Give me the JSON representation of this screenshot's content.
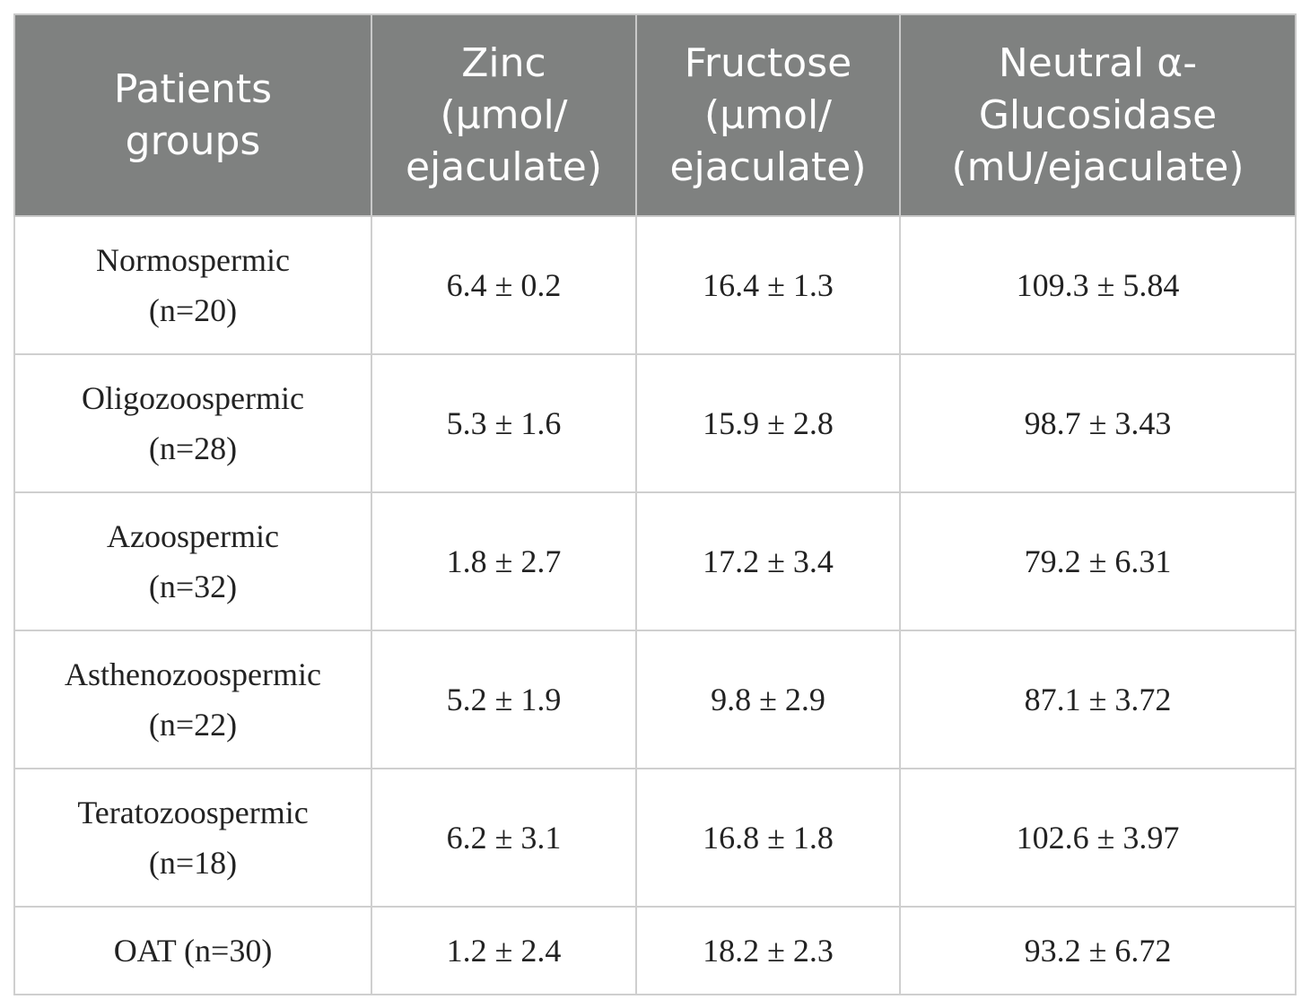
{
  "table": {
    "header": [
      [
        "Patients",
        "groups"
      ],
      [
        "Zinc",
        "(μmol/",
        "ejaculate)"
      ],
      [
        "Fructose",
        "(μmol/",
        "ejaculate)"
      ],
      [
        "Neutral α-",
        "Glucosidase",
        "(mU/ejaculate)"
      ]
    ],
    "rows": [
      [
        [
          "Normospermic",
          "(n=20)"
        ],
        "6.4 ± 0.2",
        "16.4 ± 1.3",
        "109.3 ± 5.84"
      ],
      [
        [
          "Oligozoospermic",
          "(n=28)"
        ],
        "5.3 ± 1.6",
        "15.9 ± 2.8",
        "98.7 ± 3.43"
      ],
      [
        [
          "Azoospermic",
          "(n=32)"
        ],
        "1.8 ± 2.7",
        "17.2 ± 3.4",
        "79.2 ± 6.31"
      ],
      [
        [
          "Asthenozoospermic",
          "(n=22)"
        ],
        "5.2 ± 1.9",
        "9.8 ± 2.9",
        "87.1 ± 3.72"
      ],
      [
        [
          "Teratozoospermic",
          "(n=18)"
        ],
        "6.2 ± 3.1",
        "16.8 ± 1.8",
        "102.6 ± 3.97"
      ],
      [
        [
          "OAT (n=30)"
        ],
        "1.2 ± 2.4",
        "18.2 ± 2.3",
        "93.2 ± 6.72"
      ]
    ]
  }
}
